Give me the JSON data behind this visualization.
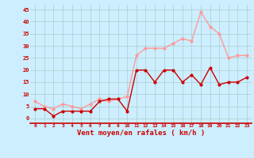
{
  "x": [
    0,
    1,
    2,
    3,
    4,
    5,
    6,
    7,
    8,
    9,
    10,
    11,
    12,
    13,
    14,
    15,
    16,
    17,
    18,
    19,
    20,
    21,
    22,
    23
  ],
  "wind_mean": [
    4,
    4,
    1,
    3,
    3,
    3,
    3,
    7,
    8,
    8,
    3,
    20,
    20,
    15,
    20,
    20,
    15,
    18,
    14,
    21,
    14,
    15,
    15,
    17
  ],
  "wind_gust": [
    7,
    5,
    4,
    6,
    5,
    4,
    6,
    8,
    7,
    8,
    9,
    26,
    29,
    29,
    29,
    31,
    33,
    32,
    44,
    38,
    35,
    25,
    26,
    26
  ],
  "bg_color": "#cceeff",
  "grid_color": "#aacccc",
  "line_mean_color": "#cc0000",
  "line_gust_color": "#ff9999",
  "xlabel": "Vent moyen/en rafales ( km/h )",
  "xlabel_color": "#cc0000",
  "tick_color": "#cc0000",
  "ylim": [
    -2,
    47
  ],
  "yticks": [
    0,
    5,
    10,
    15,
    20,
    25,
    30,
    35,
    40,
    45
  ],
  "xticks": [
    0,
    1,
    2,
    3,
    4,
    5,
    6,
    7,
    8,
    9,
    10,
    11,
    12,
    13,
    14,
    15,
    16,
    17,
    18,
    19,
    20,
    21,
    22,
    23
  ],
  "marker_size": 2,
  "line_width": 1.0
}
